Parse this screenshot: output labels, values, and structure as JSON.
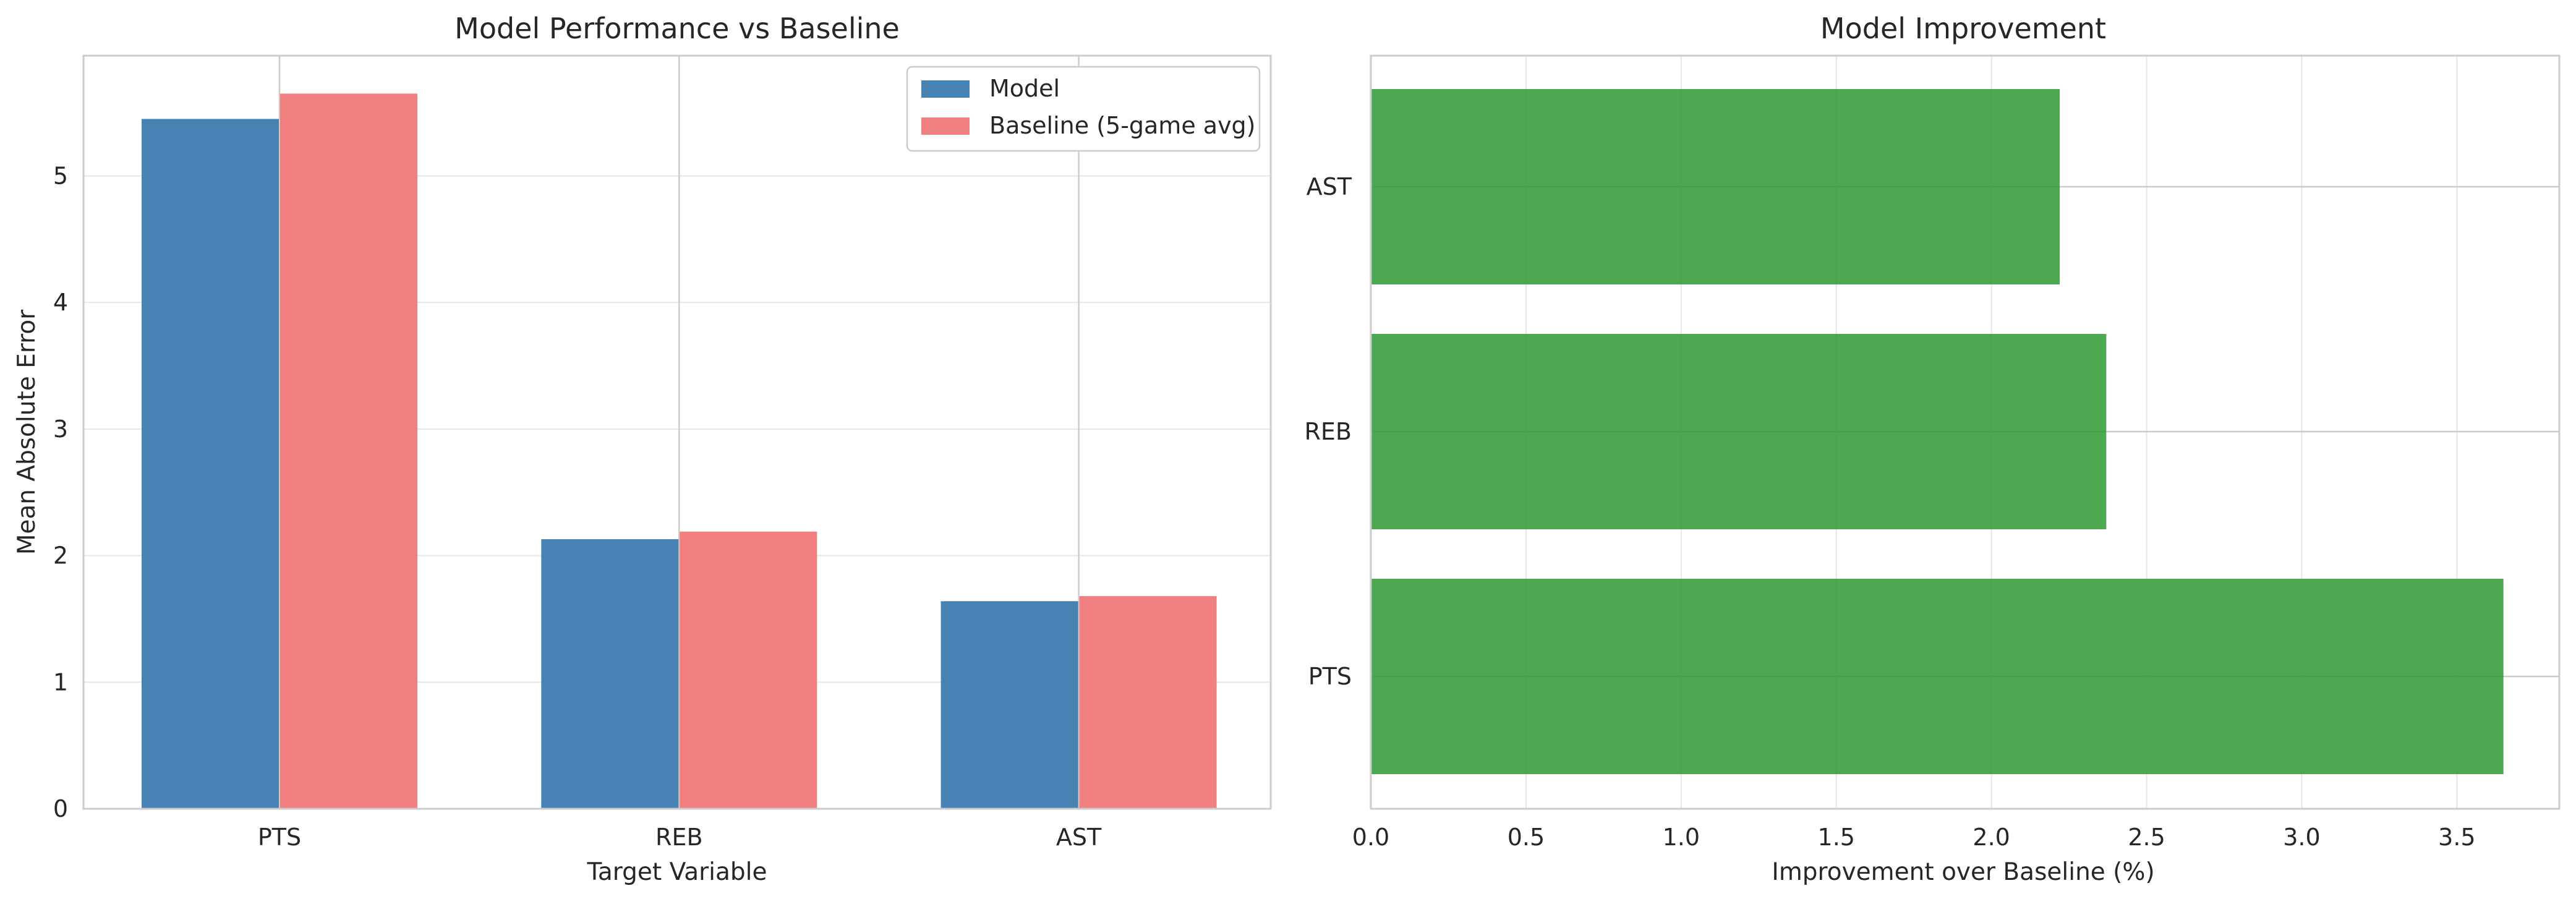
{
  "chart_data": [
    {
      "type": "bar",
      "title": "Model Performance vs Baseline",
      "xlabel": "Target Variable",
      "ylabel": "Mean Absolute Error",
      "categories": [
        "PTS",
        "REB",
        "AST"
      ],
      "series": [
        {
          "name": "Model",
          "values": [
            5.45,
            2.13,
            1.64
          ],
          "color": "#4682b4"
        },
        {
          "name": "Baseline (5-game avg)",
          "values": [
            5.65,
            2.19,
            1.68
          ],
          "color": "#f08080"
        }
      ],
      "ylim": [
        0,
        5.95
      ],
      "yticks": [
        0,
        1,
        2,
        3,
        4,
        5
      ],
      "grid": true,
      "legend": "top-right"
    },
    {
      "type": "bar",
      "orientation": "horizontal",
      "title": "Model Improvement",
      "xlabel": "Improvement over Baseline (%)",
      "ylabel": "",
      "categories": [
        "PTS",
        "REB",
        "AST"
      ],
      "values": [
        3.65,
        2.37,
        2.22
      ],
      "color": "#2e9a32",
      "xlim": [
        0,
        3.83
      ],
      "xticks": [
        0.0,
        0.5,
        1.0,
        1.5,
        2.0,
        2.5,
        3.0,
        3.5
      ],
      "xtick_labels": [
        "0.0",
        "0.5",
        "1.0",
        "1.5",
        "2.0",
        "2.5",
        "3.0",
        "3.5"
      ],
      "grid": true
    }
  ]
}
